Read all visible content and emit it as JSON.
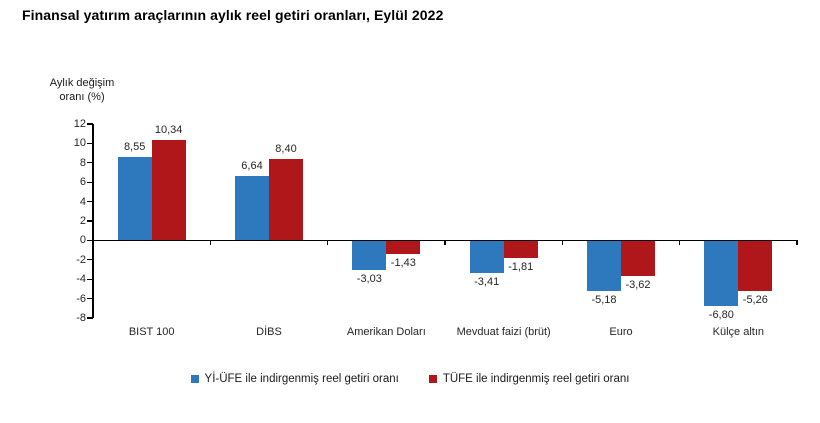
{
  "title": "Finansal yatırım araçlarının aylık reel getiri oranları, Eylül 2022",
  "y_axis": {
    "label_line1": "Aylık değişim",
    "label_line2": "oranı (%)"
  },
  "colors": {
    "series_blue": "#2E78BE",
    "series_red": "#B0171B",
    "axis": "#000000",
    "label_text": "#262626"
  },
  "chart_data": {
    "type": "bar",
    "title": "Finansal yatırım araçlarının aylık reel getiri oranları, Eylül 2022",
    "xlabel": "",
    "ylabel": "Aylık değişim oranı (%)",
    "ylim": [
      -8,
      12
    ],
    "ytick_step": 2,
    "yticks": [
      12,
      10,
      8,
      6,
      4,
      2,
      0,
      -2,
      -4,
      -6,
      -8
    ],
    "grid": false,
    "legend_position": "bottom",
    "categories": [
      "BIST 100",
      "DİBS",
      "Amerikan Doları",
      "Mevduat faizi (brüt)",
      "Euro",
      "Külçe altın"
    ],
    "series": [
      {
        "name": "Yİ-ÜFE ile indirgenmiş reel getiri oranı",
        "color": "#2E78BE",
        "values": [
          8.55,
          6.64,
          -3.03,
          -3.41,
          -5.18,
          -6.8
        ],
        "labels": [
          "8,55",
          "6,64",
          "-3,03",
          "-3,41",
          "-5,18",
          "-6,80"
        ]
      },
      {
        "name": "TÜFE ile indirgenmiş reel getiri oranı",
        "color": "#B0171B",
        "values": [
          10.34,
          8.4,
          -1.43,
          -1.81,
          -3.62,
          -5.26
        ],
        "labels": [
          "10,34",
          "8,40",
          "-1,43",
          "-1,81",
          "-3,62",
          "-5,26"
        ]
      }
    ]
  },
  "legend": {
    "items": [
      {
        "label": "Yİ-ÜFE ile indirgenmiş reel getiri oranı",
        "color": "#2E78BE"
      },
      {
        "label": "TÜFE ile indirgenmiş reel getiri oranı",
        "color": "#B0171B"
      }
    ]
  }
}
